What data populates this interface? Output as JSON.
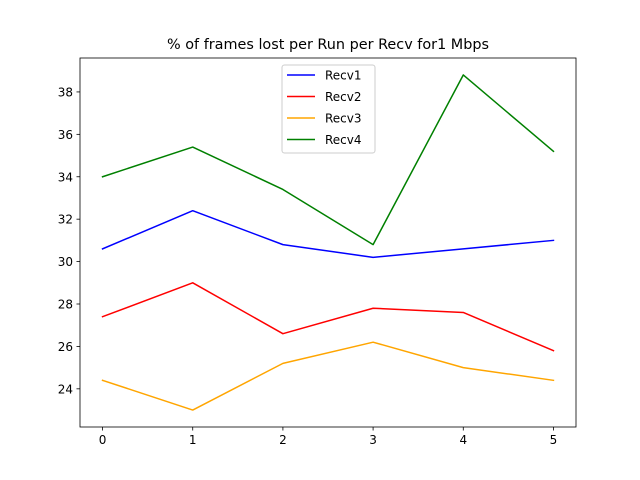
{
  "chart_data": {
    "type": "line",
    "title": "% of frames lost per Run per Recv for1 Mbps",
    "xlabel": "",
    "ylabel": "",
    "x": [
      0,
      1,
      2,
      3,
      4,
      5
    ],
    "xlim": [
      -0.25,
      5.25
    ],
    "ylim": [
      22.2,
      39.6
    ],
    "xticks": [
      0,
      1,
      2,
      3,
      4,
      5
    ],
    "yticks": [
      24,
      26,
      28,
      30,
      32,
      34,
      36,
      38
    ],
    "grid": false,
    "legend_position": "top-center",
    "series": [
      {
        "name": "Recv1",
        "color": "#0000ff",
        "values": [
          30.6,
          32.4,
          30.8,
          30.2,
          30.6,
          31.0
        ]
      },
      {
        "name": "Recv2",
        "color": "#ff0000",
        "values": [
          27.4,
          29.0,
          26.6,
          27.8,
          27.6,
          25.8
        ]
      },
      {
        "name": "Recv3",
        "color": "#ffa500",
        "values": [
          24.4,
          23.0,
          25.2,
          26.2,
          25.0,
          24.4
        ]
      },
      {
        "name": "Recv4",
        "color": "#008000",
        "values": [
          34.0,
          35.4,
          33.4,
          30.8,
          38.8,
          35.2
        ]
      }
    ]
  }
}
